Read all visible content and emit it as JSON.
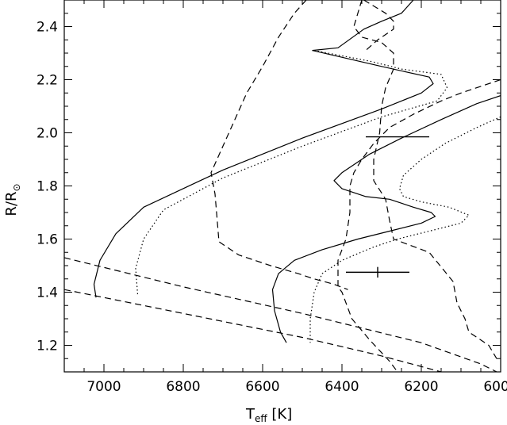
{
  "chart_data": {
    "type": "line",
    "title": "",
    "xlabel": {
      "main": "T",
      "subscript": "eff",
      "unit": "[K]"
    },
    "ylabel": {
      "main": "R/R",
      "symbol": "⊙"
    },
    "xlim": [
      7100,
      6000
    ],
    "ylim": [
      1.1,
      2.5
    ],
    "x_ticks": [
      7000,
      6800,
      6600,
      6400,
      6200,
      6000
    ],
    "x_tick_labels": [
      "7000",
      "6800",
      "6600",
      "6400",
      "6200",
      "6000"
    ],
    "y_ticks": [
      1.2,
      1.4,
      1.6,
      1.8,
      2.0,
      2.2,
      2.4
    ],
    "y_tick_labels": [
      "1.2",
      "1.4",
      "1.6",
      "1.8",
      "2.0",
      "2.2",
      "2.4"
    ],
    "grid": false,
    "legend": "none",
    "series": [
      {
        "style": "solid",
        "points": [
          [
            6475,
            2.31
          ],
          [
            6410,
            2.32
          ],
          [
            6345,
            2.39
          ],
          [
            6300,
            2.42
          ],
          [
            6250,
            2.45
          ],
          [
            6220,
            2.5
          ]
        ]
      },
      {
        "style": "solid",
        "points": [
          [
            6475,
            2.31
          ],
          [
            6300,
            2.25
          ],
          [
            6180,
            2.21
          ],
          [
            6170,
            2.185
          ],
          [
            6200,
            2.15
          ],
          [
            6300,
            2.09
          ],
          [
            6500,
            1.98
          ],
          [
            6700,
            1.86
          ],
          [
            6900,
            1.72
          ],
          [
            6970,
            1.62
          ],
          [
            7010,
            1.52
          ],
          [
            7025,
            1.43
          ],
          [
            7020,
            1.38
          ]
        ]
      },
      {
        "style": "dotted",
        "points": [
          [
            6470,
            2.31
          ],
          [
            6400,
            2.29
          ],
          [
            6330,
            2.27
          ],
          [
            6250,
            2.24
          ],
          [
            6150,
            2.22
          ],
          [
            6135,
            2.17
          ],
          [
            6160,
            2.12
          ],
          [
            6300,
            2.06
          ],
          [
            6500,
            1.95
          ],
          [
            6700,
            1.83
          ],
          [
            6850,
            1.71
          ],
          [
            6900,
            1.6
          ],
          [
            6920,
            1.49
          ],
          [
            6915,
            1.39
          ]
        ]
      },
      {
        "style": "solid",
        "points": [
          [
            6000,
            2.14
          ],
          [
            6060,
            2.11
          ],
          [
            6150,
            2.05
          ],
          [
            6250,
            1.98
          ],
          [
            6330,
            1.92
          ],
          [
            6400,
            1.85
          ],
          [
            6420,
            1.82
          ],
          [
            6400,
            1.79
          ],
          [
            6340,
            1.76
          ],
          [
            6280,
            1.75
          ],
          [
            6220,
            1.72
          ],
          [
            6175,
            1.7
          ],
          [
            6165,
            1.685
          ],
          [
            6200,
            1.66
          ],
          [
            6280,
            1.63
          ],
          [
            6360,
            1.6
          ],
          [
            6450,
            1.56
          ],
          [
            6520,
            1.52
          ],
          [
            6560,
            1.47
          ],
          [
            6575,
            1.41
          ],
          [
            6570,
            1.33
          ],
          [
            6555,
            1.25
          ],
          [
            6540,
            1.21
          ]
        ]
      },
      {
        "style": "dotted",
        "points": [
          [
            6000,
            2.06
          ],
          [
            6060,
            2.02
          ],
          [
            6140,
            1.96
          ],
          [
            6200,
            1.9
          ],
          [
            6245,
            1.84
          ],
          [
            6255,
            1.79
          ],
          [
            6245,
            1.76
          ],
          [
            6200,
            1.74
          ],
          [
            6130,
            1.72
          ],
          [
            6080,
            1.69
          ],
          [
            6100,
            1.66
          ],
          [
            6180,
            1.63
          ],
          [
            6260,
            1.6
          ],
          [
            6320,
            1.57
          ],
          [
            6400,
            1.52
          ],
          [
            6450,
            1.47
          ],
          [
            6470,
            1.4
          ],
          [
            6480,
            1.3
          ],
          [
            6480,
            1.21
          ]
        ]
      },
      {
        "style": "dashed",
        "points": [
          [
            6490,
            2.5
          ],
          [
            6520,
            2.45
          ],
          [
            6560,
            2.36
          ],
          [
            6600,
            2.25
          ],
          [
            6640,
            2.15
          ],
          [
            6670,
            2.05
          ],
          [
            6700,
            1.95
          ],
          [
            6730,
            1.85
          ],
          [
            6720,
            1.77
          ],
          [
            6715,
            1.68
          ],
          [
            6710,
            1.59
          ],
          [
            6660,
            1.54
          ],
          [
            6580,
            1.5
          ],
          [
            6510,
            1.47
          ],
          [
            6470,
            1.45
          ],
          [
            6420,
            1.43
          ],
          [
            6385,
            1.41
          ]
        ]
      },
      {
        "style": "dashed",
        "points": [
          [
            6350,
            2.5
          ],
          [
            6360,
            2.45
          ],
          [
            6370,
            2.4
          ],
          [
            6350,
            2.36
          ],
          [
            6300,
            2.34
          ],
          [
            6270,
            2.3
          ],
          [
            6270,
            2.24
          ],
          [
            6290,
            2.17
          ],
          [
            6300,
            2.1
          ],
          [
            6305,
            2.0
          ],
          [
            6320,
            1.9
          ],
          [
            6320,
            1.82
          ],
          [
            6290,
            1.75
          ],
          [
            6280,
            1.67
          ],
          [
            6270,
            1.6
          ],
          [
            6180,
            1.55
          ],
          [
            6120,
            1.44
          ],
          [
            6110,
            1.36
          ],
          [
            6090,
            1.3
          ],
          [
            6080,
            1.25
          ],
          [
            6030,
            1.2
          ],
          [
            6010,
            1.15
          ]
        ]
      },
      {
        "style": "dashed",
        "points": [
          [
            6345,
            2.5
          ],
          [
            6290,
            2.45
          ],
          [
            6270,
            2.42
          ],
          [
            6270,
            2.39
          ],
          [
            6310,
            2.35
          ],
          [
            6325,
            2.33
          ],
          [
            6340,
            2.31
          ]
        ]
      },
      {
        "style": "dashed",
        "points": [
          [
            6000,
            2.2
          ],
          [
            6040,
            2.18
          ],
          [
            6100,
            2.15
          ],
          [
            6150,
            2.12
          ],
          [
            6220,
            2.07
          ],
          [
            6280,
            2.02
          ],
          [
            6320,
            1.96
          ],
          [
            6350,
            1.9
          ],
          [
            6370,
            1.85
          ],
          [
            6380,
            1.8
          ],
          [
            6380,
            1.7
          ],
          [
            6390,
            1.6
          ],
          [
            6410,
            1.52
          ],
          [
            6410,
            1.42
          ],
          [
            6400,
            1.4
          ],
          [
            6375,
            1.3
          ],
          [
            6330,
            1.22
          ],
          [
            6280,
            1.14
          ],
          [
            6260,
            1.1
          ]
        ]
      },
      {
        "style": "dashed",
        "points": [
          [
            7100,
            1.53
          ],
          [
            6800,
            1.42
          ],
          [
            6500,
            1.32
          ],
          [
            6200,
            1.21
          ],
          [
            6050,
            1.13
          ],
          [
            6010,
            1.1
          ]
        ]
      },
      {
        "style": "dashed",
        "points": [
          [
            7100,
            1.41
          ],
          [
            6900,
            1.35
          ],
          [
            6700,
            1.29
          ],
          [
            6500,
            1.23
          ],
          [
            6300,
            1.16
          ],
          [
            6150,
            1.1
          ]
        ]
      }
    ],
    "error_bars": [
      {
        "x": 6260,
        "y": 1.985,
        "xerr": 80,
        "yerr": 0
      },
      {
        "x": 6310,
        "y": 1.475,
        "xerr": 80,
        "yerr": 0.02
      }
    ]
  }
}
